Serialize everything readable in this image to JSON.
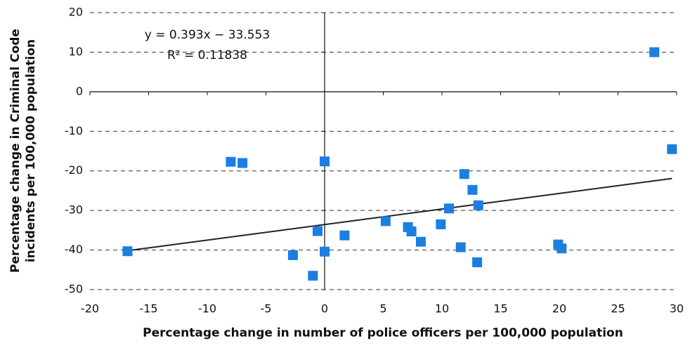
{
  "chart_data": {
    "type": "scatter",
    "xlabel": "Percentage change in number of police officers per 100,000 population",
    "ylabel": [
      "Percentage change in Criminal Code",
      "incidents per 100,000 population"
    ],
    "annotations": [
      "y = 0.393x − 33.553",
      "R² = 0.11838"
    ],
    "xlim": [
      -20,
      30
    ],
    "xticks": [
      -20,
      -15,
      -10,
      -5,
      0,
      5,
      10,
      15,
      20,
      25,
      30
    ],
    "ylim": [
      -50,
      20
    ],
    "yticks": [
      -50,
      -40,
      -30,
      -20,
      -10,
      0,
      10,
      20
    ],
    "grid": true,
    "series": [
      {
        "color": "#1a7fe0",
        "x": [
          -16.8,
          -8,
          -7,
          -2.7,
          -1,
          -0.6,
          0,
          0,
          1.7,
          5.2,
          7.1,
          7.4,
          8.2,
          9.9,
          10.6,
          11.6,
          11.9,
          12.6,
          13.1,
          13.0,
          19.9,
          20.2,
          28.1,
          29.6
        ],
        "values": [
          -40.3,
          -17.7,
          -18,
          -41.3,
          -46.5,
          -35.2,
          -17.6,
          -40.4,
          -36.3,
          -32.7,
          -34.2,
          -35.3,
          -37.9,
          -33.5,
          -29.5,
          -39.3,
          -20.8,
          -24.8,
          -28.7,
          -43.1,
          -38.6,
          -39.6,
          10,
          -14.5
        ]
      }
    ],
    "trendline": {
      "color": "#222222",
      "x": [
        -16.8,
        29.6
      ],
      "values": [
        -40.16,
        -21.92
      ]
    }
  }
}
